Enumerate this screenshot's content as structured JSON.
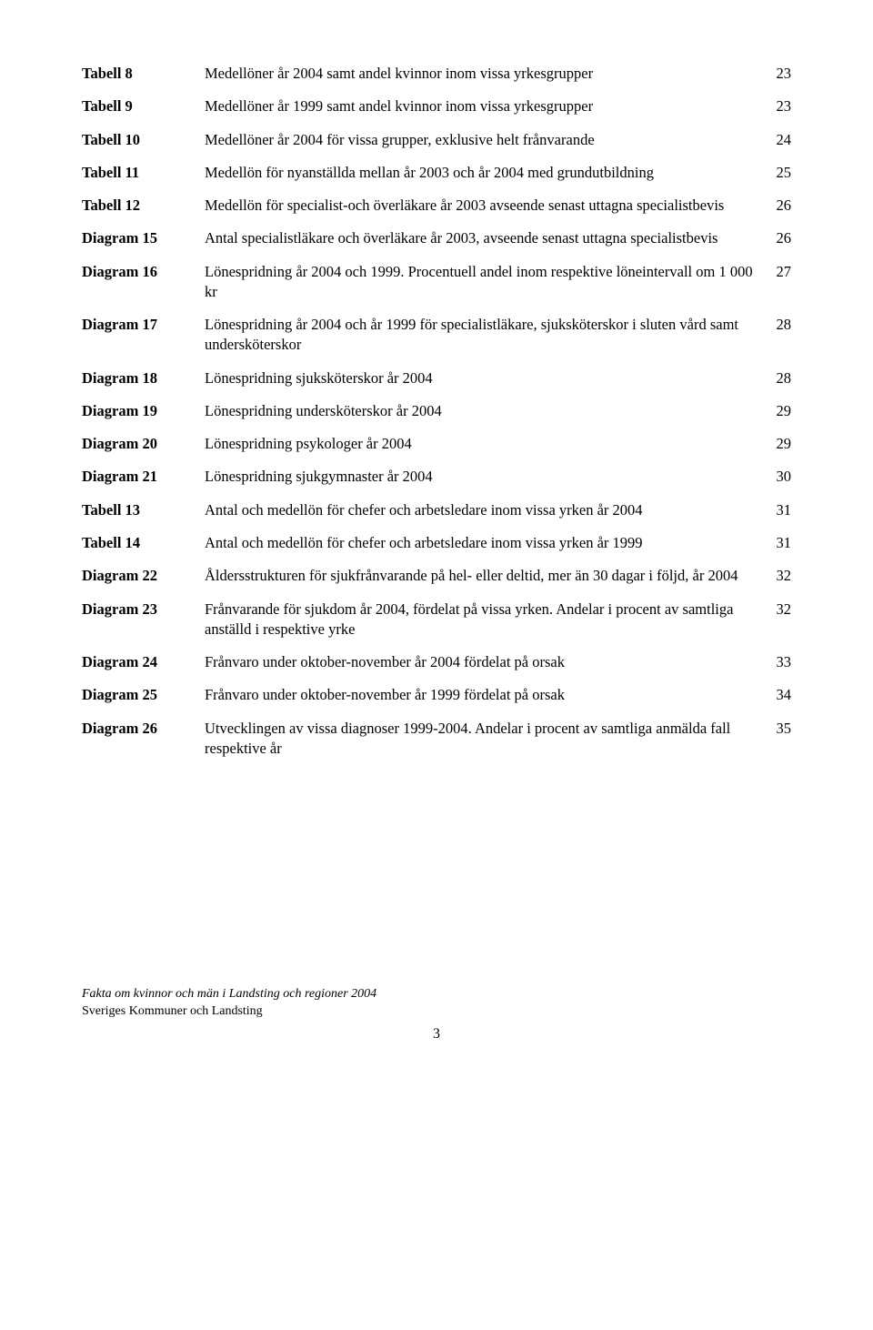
{
  "toc": [
    {
      "label": "Tabell 8",
      "desc": "Medellöner år 2004 samt andel kvinnor inom vissa yrkesgrupper",
      "page": "23"
    },
    {
      "label": "Tabell 9",
      "desc": "Medellöner år 1999 samt andel kvinnor inom vissa yrkesgrupper",
      "page": "23"
    },
    {
      "label": "Tabell 10",
      "desc": "Medellöner år 2004 för vissa grupper, exklusive helt frånvarande",
      "page": "24"
    },
    {
      "label": "Tabell 11",
      "desc": "Medellön för nyanställda mellan år 2003 och år 2004 med grundutbildning",
      "page": "25"
    },
    {
      "label": "Tabell 12",
      "desc": "Medellön för specialist-och överläkare år 2003 avseende senast uttagna specialistbevis",
      "page": "26"
    },
    {
      "label": "Diagram 15",
      "desc": "Antal specialistläkare och överläkare år 2003, avseende senast uttagna specialistbevis",
      "page": "26"
    },
    {
      "label": "Diagram 16",
      "desc": "Lönespridning år 2004 och 1999. Procentuell andel inom respektive löneintervall om 1 000 kr",
      "page": "27"
    },
    {
      "label": "Diagram 17",
      "desc": "Lönespridning år 2004 och år 1999 för specialistläkare, sjuksköterskor i sluten vård samt undersköterskor",
      "page": "28"
    },
    {
      "label": "Diagram 18",
      "desc": "Lönespridning sjuksköterskor år 2004",
      "page": "28"
    },
    {
      "label": "Diagram 19",
      "desc": "Lönespridning undersköterskor år 2004",
      "page": "29"
    },
    {
      "label": "Diagram 20",
      "desc": "Lönespridning psykologer år 2004",
      "page": "29"
    },
    {
      "label": "Diagram 21",
      "desc": "Lönespridning sjukgymnaster år 2004",
      "page": "30"
    },
    {
      "label": "Tabell 13",
      "desc": "Antal och medellön för chefer och arbetsledare inom vissa yrken år 2004",
      "page": "31"
    },
    {
      "label": "Tabell 14",
      "desc": "Antal och medellön för chefer och arbetsledare inom vissa yrken år 1999",
      "page": "31"
    },
    {
      "label": "Diagram 22",
      "desc": "Åldersstrukturen för sjukfrånvarande på hel- eller deltid, mer än 30 dagar i följd, år 2004",
      "page": "32"
    },
    {
      "label": "Diagram 23",
      "desc": "Frånvarande för sjukdom år 2004, fördelat på vissa yrken. Andelar i procent av samtliga anställd i respektive yrke",
      "page": "32"
    },
    {
      "label": "Diagram 24",
      "desc": "Frånvaro under oktober-november år 2004 fördelat på orsak",
      "page": "33"
    },
    {
      "label": "Diagram 25",
      "desc": "Frånvaro under oktober-november år 1999 fördelat på orsak",
      "page": "34"
    },
    {
      "label": "Diagram 26",
      "desc": "Utvecklingen av vissa diagnoser 1999-2004. Andelar i procent av samtliga anmälda fall respektive år",
      "page": "35"
    }
  ],
  "footer": {
    "title": "Fakta om kvinnor och män i Landsting och regioner 2004",
    "org": "Sveriges Kommuner och Landsting",
    "page_number": "3"
  }
}
